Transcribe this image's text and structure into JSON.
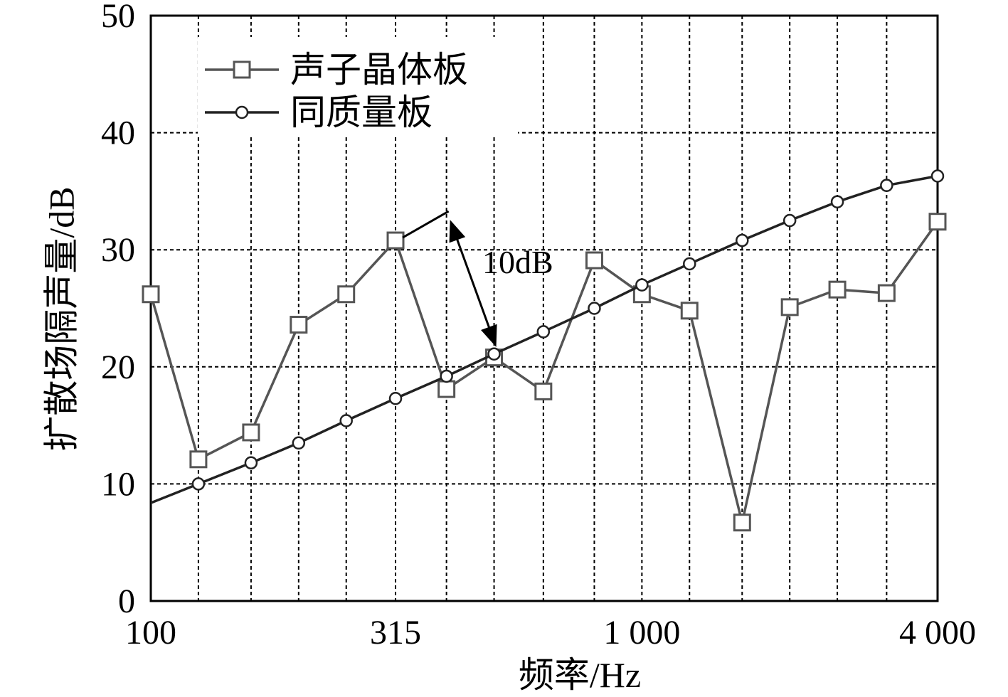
{
  "chart_data": {
    "type": "line",
    "title": "",
    "xlabel": "频率/Hz",
    "ylabel": "扩散场隔声量/dB",
    "x_scale": "log",
    "xlim": [
      100,
      4000
    ],
    "ylim": [
      0,
      50
    ],
    "x_ticks": [
      {
        "value": 100,
        "label": "100"
      },
      {
        "value": 315,
        "label": "315"
      },
      {
        "value": 1000,
        "label": "1 000"
      },
      {
        "value": 4000,
        "label": "4 000"
      }
    ],
    "y_ticks": [
      {
        "value": 0,
        "label": "0"
      },
      {
        "value": 10,
        "label": "10"
      },
      {
        "value": 20,
        "label": "20"
      },
      {
        "value": 30,
        "label": "30"
      },
      {
        "value": 40,
        "label": "40"
      },
      {
        "value": 50,
        "label": "50"
      }
    ],
    "grid": true,
    "legend_position": "top-left",
    "x": [
      100,
      125,
      160,
      200,
      250,
      315,
      400,
      500,
      630,
      800,
      1000,
      1250,
      1600,
      2000,
      2500,
      3150,
      4000
    ],
    "series": [
      {
        "name": "声子晶体板",
        "marker": "square",
        "color": "#555555",
        "values": [
          26.2,
          12.1,
          14.4,
          23.6,
          26.2,
          30.8,
          18.1,
          20.8,
          17.9,
          29.1,
          26.2,
          24.8,
          6.7,
          25.1,
          26.6,
          26.3,
          32.4
        ]
      },
      {
        "name": "同质量板",
        "marker": "circle",
        "color": "#222222",
        "values": [
          null,
          10.0,
          11.8,
          13.5,
          15.4,
          17.3,
          19.2,
          21.1,
          23.0,
          25.0,
          27.0,
          28.8,
          30.8,
          32.5,
          34.1,
          35.5,
          36.3
        ]
      }
    ],
    "annotations": [
      {
        "text": "10dB",
        "x_from": 400,
        "y_from": 32.8,
        "x_to": 500,
        "y_to": 21.2
      }
    ]
  }
}
